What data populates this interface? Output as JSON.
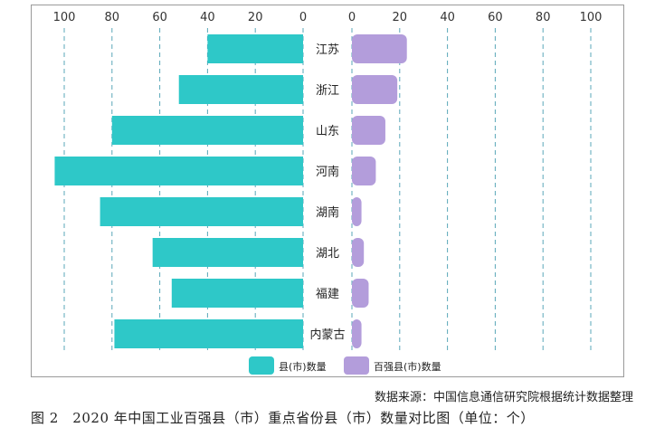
{
  "chart_data": {
    "type": "bar",
    "categories": [
      "江苏",
      "浙江",
      "山东",
      "河南",
      "湖南",
      "湖北",
      "福建",
      "内蒙古"
    ],
    "series": [
      {
        "name": "县(市)数量",
        "values": [
          40,
          52,
          80,
          104,
          85,
          63,
          55,
          79
        ],
        "color": "#2ec8c8"
      },
      {
        "name": "百强县(市)数量",
        "values": [
          23,
          19,
          14,
          10,
          4,
          5,
          7,
          4
        ],
        "color": "#b39ddb"
      }
    ],
    "left_axis_ticks": [
      "100",
      "80",
      "60",
      "40",
      "20",
      "0"
    ],
    "right_axis_ticks": [
      "0",
      "20",
      "40",
      "60",
      "80",
      "100"
    ],
    "xlim": [
      0,
      105
    ],
    "grid": "dashed vertical",
    "legend_position": "bottom-center"
  },
  "source_note": "数据来源：中国信息通信研究院根据统计数据整理",
  "caption": "图 2　2020 年中国工业百强县（市）重点省份县（市）数量对比图（单位：个）"
}
